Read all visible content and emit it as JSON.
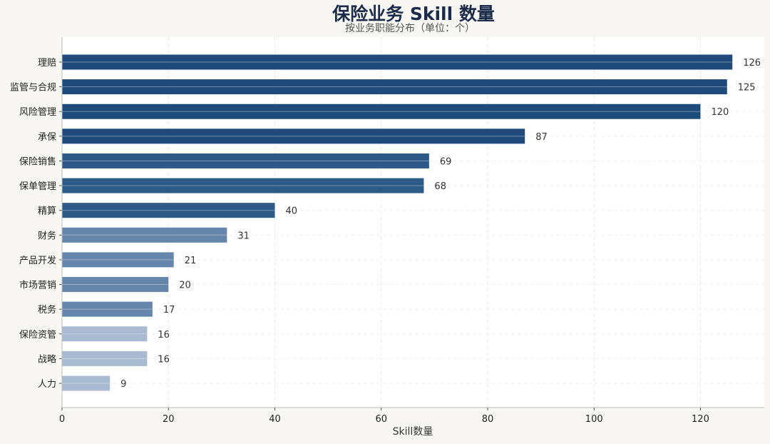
{
  "chart_data": {
    "type": "bar",
    "orientation": "horizontal",
    "title": "保险业务 Skill 数量",
    "subtitle": "按业务职能分布（单位：个）",
    "xlabel": "Skill数量",
    "ylabel": "",
    "xlim": [
      0,
      132
    ],
    "xticks": [
      0,
      20,
      40,
      60,
      80,
      100,
      120
    ],
    "grid": true,
    "categories": [
      "理赔",
      "监管与合规",
      "风险管理",
      "承保",
      "保险销售",
      "保单管理",
      "精算",
      "财务",
      "产品开发",
      "市场营销",
      "税务",
      "保险资管",
      "战略",
      "人力"
    ],
    "values": [
      126,
      125,
      120,
      87,
      69,
      68,
      40,
      31,
      21,
      20,
      17,
      16,
      16,
      9
    ],
    "colors": [
      "#1f4a7c",
      "#1f4a7c",
      "#1f4a7c",
      "#1f4a7c",
      "#2e5a88",
      "#2e5a88",
      "#2e5a88",
      "#6585ab",
      "#6585ab",
      "#6585ab",
      "#6585ab",
      "#a9bbd0",
      "#a9bbd0",
      "#a9bbd0"
    ]
  }
}
